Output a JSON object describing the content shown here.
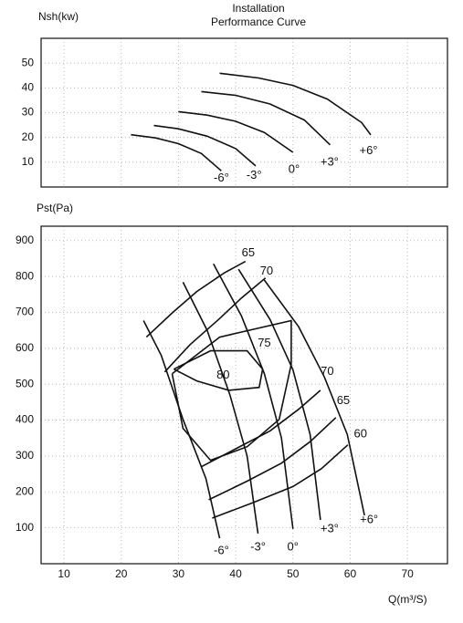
{
  "chart_data": [
    {
      "type": "line",
      "title": "Installation",
      "subtitle": "Performance Curve",
      "ylabel": "Nsh(kw)",
      "xlim": [
        6,
        77
      ],
      "ylim": [
        0,
        60
      ],
      "yticks": [
        10,
        20,
        30,
        40,
        50
      ],
      "grid": true,
      "color": "#111111",
      "series": [
        {
          "x": [
            21.7,
            26,
            30,
            34,
            37.5
          ],
          "values": [
            21.1,
            19.8,
            17.5,
            13.5,
            6.5
          ]
        },
        {
          "x": [
            25.7,
            30,
            35,
            40,
            43.5
          ],
          "values": [
            24.8,
            23.5,
            20.5,
            15.5,
            8.5
          ]
        },
        {
          "x": [
            30,
            35,
            40,
            45,
            50
          ],
          "values": [
            30.4,
            29,
            26.5,
            22,
            14
          ]
        },
        {
          "x": [
            34,
            40,
            46,
            52,
            56.5
          ],
          "values": [
            38.5,
            37,
            33.5,
            27,
            17
          ]
        },
        {
          "x": [
            37.2,
            44,
            50,
            56,
            62,
            63.6
          ],
          "values": [
            45.9,
            44,
            41,
            35.5,
            26,
            21
          ]
        }
      ],
      "annotations": [
        {
          "text": "-6°",
          "x": 37.5,
          "y": 3.5
        },
        {
          "text": "-3°",
          "x": 43.2,
          "y": 4.5
        },
        {
          "text": "0°",
          "x": 50.2,
          "y": 7
        },
        {
          "text": "+3°",
          "x": 56.4,
          "y": 10
        },
        {
          "text": "+6°",
          "x": 63.2,
          "y": 14.5
        }
      ]
    },
    {
      "type": "line",
      "ylabel": "Pst(Pa)",
      "xlabel": "Q(m³/S)",
      "xlim": [
        6,
        77
      ],
      "xticks": [
        10,
        20,
        30,
        40,
        50,
        60,
        70
      ],
      "ylim": [
        0,
        940
      ],
      "yticks": [
        100,
        200,
        300,
        400,
        500,
        600,
        700,
        800,
        900
      ],
      "grid": true,
      "color": "#111111",
      "series": [
        {
          "x": [
            23.9,
            27,
            30.8,
            34.8,
            37.2
          ],
          "values": [
            677,
            580,
            402,
            237,
            71
          ]
        },
        {
          "x": [
            30.8,
            35,
            39,
            42,
            43.9
          ],
          "values": [
            784,
            650,
            470,
            300,
            84
          ]
        },
        {
          "x": [
            36.1,
            41,
            45,
            48,
            50
          ],
          "values": [
            835,
            690,
            530,
            350,
            97
          ]
        },
        {
          "x": [
            40.5,
            46,
            50,
            53,
            54.8
          ],
          "values": [
            820,
            680,
            540,
            360,
            122
          ]
        },
        {
          "x": [
            45,
            51,
            55.5,
            59.5,
            62.5
          ],
          "values": [
            790,
            660,
            520,
            360,
            135
          ]
        },
        {
          "x": [
            24.4,
            29,
            33.2,
            38,
            41.7
          ],
          "values": [
            631,
            700,
            758,
            810,
            842
          ]
        },
        {
          "x": [
            27.6,
            32,
            37,
            41,
            45.2
          ],
          "values": [
            534,
            610,
            680,
            740,
            796
          ]
        },
        {
          "x": [
            28.9,
            37.2,
            49.7,
            49.7,
            47.6,
            42,
            35.6,
            30.8,
            28.9
          ],
          "values": [
            529,
            631,
            677,
            555,
            402,
            326,
            288,
            377,
            529
          ]
        },
        {
          "x": [
            29.2,
            35.6,
            42,
            44.7,
            44.1,
            38.8,
            33.2,
            29.2
          ],
          "values": [
            542,
            593,
            593,
            542,
            491,
            483,
            509,
            542
          ]
        },
        {
          "x": [
            34,
            40,
            46,
            51,
            54.8
          ],
          "values": [
            270,
            320,
            370,
            430,
            483
          ]
        },
        {
          "x": [
            35.3,
            42,
            48,
            53,
            57.5
          ],
          "values": [
            178,
            230,
            280,
            340,
            407
          ]
        },
        {
          "x": [
            35.9,
            43,
            50,
            55,
            59.6
          ],
          "values": [
            127,
            170,
            215,
            265,
            331
          ]
        }
      ],
      "annotations": [
        {
          "text": "65",
          "x": 42.2,
          "y": 865
        },
        {
          "text": "70",
          "x": 45.4,
          "y": 814
        },
        {
          "text": "75",
          "x": 45,
          "y": 613
        },
        {
          "text": "80",
          "x": 37.8,
          "y": 524
        },
        {
          "text": "70",
          "x": 56,
          "y": 534
        },
        {
          "text": "65",
          "x": 58.8,
          "y": 453
        },
        {
          "text": "60",
          "x": 61.8,
          "y": 361
        },
        {
          "text": "-6°",
          "x": 37.5,
          "y": 36
        },
        {
          "text": "-3°",
          "x": 43.9,
          "y": 46
        },
        {
          "text": "0°",
          "x": 50,
          "y": 46
        },
        {
          "text": "+3°",
          "x": 56.4,
          "y": 97
        },
        {
          "text": "+6°",
          "x": 63.3,
          "y": 122
        }
      ]
    }
  ]
}
